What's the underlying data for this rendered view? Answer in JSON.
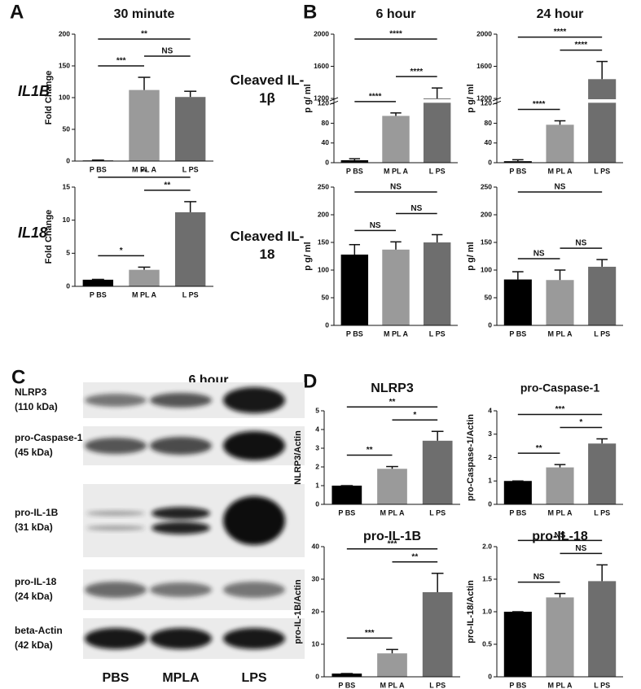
{
  "panel_labels": [
    "A",
    "B",
    "C",
    "D"
  ],
  "blot": {
    "title": "6 hour",
    "rows": [
      [
        "NLRP3",
        "(110 kDa)"
      ],
      [
        "pro-Caspase-1",
        "(45 kDa)"
      ],
      [
        "pro-IL-1B",
        "(31 kDa)"
      ],
      [
        "pro-IL-18",
        "(24 kDa)"
      ],
      [
        "beta-Actin",
        "(42 kDa)"
      ]
    ],
    "lanes": [
      "PBS",
      "MPLA",
      "LPS"
    ]
  },
  "chart_data": [
    {
      "type": "bar",
      "title": "30 minute",
      "row_label": "IL1B",
      "ylabel": "Fold Change",
      "categories": [
        "P BS",
        "M PL A",
        "L PS"
      ],
      "values": [
        1,
        112,
        101
      ],
      "errors": [
        0.5,
        20,
        9
      ],
      "colors": [
        "#000000",
        "#9a9a9a",
        "#6e6e6e"
      ],
      "ylim": [
        0,
        200
      ],
      "yticks": [
        0,
        50,
        100,
        150,
        200
      ],
      "annotations": [
        {
          "text": "**",
          "between": [
            0,
            2
          ]
        },
        {
          "text": "NS",
          "between": [
            1,
            2
          ]
        },
        {
          "text": "***",
          "between": [
            0,
            1
          ]
        }
      ]
    },
    {
      "type": "bar",
      "row_label": "IL18",
      "ylabel": "Fold Change",
      "categories": [
        "P BS",
        "M PL A",
        "L PS"
      ],
      "values": [
        1,
        2.5,
        11.2
      ],
      "errors": [
        0.05,
        0.4,
        1.6
      ],
      "colors": [
        "#000000",
        "#9a9a9a",
        "#6e6e6e"
      ],
      "ylim": [
        0,
        15
      ],
      "yticks": [
        0,
        5,
        10,
        15
      ],
      "annotations": [
        {
          "text": "**",
          "between": [
            0,
            2
          ]
        },
        {
          "text": "**",
          "between": [
            1,
            2
          ]
        },
        {
          "text": "*",
          "between": [
            0,
            1
          ]
        }
      ]
    },
    {
      "type": "bar",
      "title": "6 hour",
      "row_label": "Cleaved IL-1β",
      "ylabel": "p g/ ml",
      "categories": [
        "P BS",
        "M PL A",
        "L PS"
      ],
      "values": [
        5,
        95,
        1190
      ],
      "errors": [
        3,
        6,
        140
      ],
      "colors": [
        "#000000",
        "#9a9a9a",
        "#6e6e6e"
      ],
      "ylim": [
        0,
        2000
      ],
      "ybreak": [
        120,
        1200
      ],
      "yticks": [
        0,
        40,
        80,
        120,
        1200,
        1600,
        2000
      ],
      "annotations": [
        {
          "text": "****",
          "between": [
            0,
            2
          ]
        },
        {
          "text": "****",
          "between": [
            1,
            2
          ]
        },
        {
          "text": "****",
          "between": [
            0,
            1
          ]
        }
      ]
    },
    {
      "type": "bar",
      "title": "24 hour",
      "ylabel": "p g/ ml",
      "categories": [
        "P BS",
        "M PL A",
        "L PS"
      ],
      "values": [
        3,
        77,
        1440
      ],
      "errors": [
        3,
        8,
        220
      ],
      "colors": [
        "#000000",
        "#9a9a9a",
        "#6e6e6e"
      ],
      "ylim": [
        0,
        2000
      ],
      "ybreak": [
        120,
        1200
      ],
      "yticks": [
        0,
        40,
        80,
        120,
        1200,
        1600,
        2000
      ],
      "annotations": [
        {
          "text": "****",
          "between": [
            0,
            2
          ]
        },
        {
          "text": "****",
          "between": [
            1,
            2
          ]
        },
        {
          "text": "****",
          "between": [
            0,
            1
          ]
        }
      ]
    },
    {
      "type": "bar",
      "row_label": "Cleaved IL-18",
      "ylabel": "p g/ ml",
      "categories": [
        "P BS",
        "M PL A",
        "L PS"
      ],
      "values": [
        128,
        137,
        150
      ],
      "errors": [
        18,
        14,
        14
      ],
      "colors": [
        "#000000",
        "#9a9a9a",
        "#6e6e6e"
      ],
      "ylim": [
        0,
        250
      ],
      "yticks": [
        0,
        50,
        100,
        150,
        200,
        250
      ],
      "annotations": [
        {
          "text": "NS",
          "between": [
            0,
            2
          ]
        },
        {
          "text": "NS",
          "between": [
            1,
            2
          ]
        },
        {
          "text": "NS",
          "between": [
            0,
            1
          ]
        }
      ]
    },
    {
      "type": "bar",
      "ylabel": "p g/ ml",
      "categories": [
        "P BS",
        "M PL A",
        "L PS"
      ],
      "values": [
        83,
        82,
        106
      ],
      "errors": [
        14,
        18,
        13
      ],
      "colors": [
        "#000000",
        "#9a9a9a",
        "#6e6e6e"
      ],
      "ylim": [
        0,
        250
      ],
      "yticks": [
        0,
        50,
        100,
        150,
        200,
        250
      ],
      "annotations": [
        {
          "text": "NS",
          "between": [
            0,
            2
          ]
        },
        {
          "text": "NS",
          "between": [
            1,
            2
          ]
        },
        {
          "text": "NS",
          "between": [
            0,
            1
          ]
        }
      ]
    },
    {
      "type": "bar",
      "title": "NLRP3",
      "ylabel": "NLRP3/Actin",
      "categories": [
        "P BS",
        "M PL A",
        "L PS"
      ],
      "values": [
        1,
        1.9,
        3.4
      ],
      "errors": [
        0,
        0.12,
        0.5
      ],
      "colors": [
        "#000000",
        "#9a9a9a",
        "#6e6e6e"
      ],
      "ylim": [
        0,
        5
      ],
      "yticks": [
        0,
        1,
        2,
        3,
        4,
        5
      ],
      "annotations": [
        {
          "text": "**",
          "between": [
            0,
            2
          ]
        },
        {
          "text": "*",
          "between": [
            1,
            2
          ]
        },
        {
          "text": "**",
          "between": [
            0,
            1
          ]
        }
      ]
    },
    {
      "type": "bar",
      "title": "pro-Caspase-1",
      "ylabel": "pro-Caspase-1/Actin",
      "categories": [
        "P BS",
        "M PL A",
        "L PS"
      ],
      "values": [
        1,
        1.58,
        2.6
      ],
      "errors": [
        0,
        0.12,
        0.2
      ],
      "colors": [
        "#000000",
        "#9a9a9a",
        "#6e6e6e"
      ],
      "ylim": [
        0,
        4
      ],
      "yticks": [
        0,
        1,
        2,
        3,
        4
      ],
      "annotations": [
        {
          "text": "***",
          "between": [
            0,
            2
          ]
        },
        {
          "text": "*",
          "between": [
            1,
            2
          ]
        },
        {
          "text": "**",
          "between": [
            0,
            1
          ]
        }
      ]
    },
    {
      "type": "bar",
      "title": "pro-IL-1B",
      "ylabel": "pro-IL-1B/Actin",
      "categories": [
        "P BS",
        "M PL A",
        "L PS"
      ],
      "values": [
        1,
        7.2,
        26
      ],
      "errors": [
        0,
        1.2,
        5.8
      ],
      "colors": [
        "#000000",
        "#9a9a9a",
        "#6e6e6e"
      ],
      "ylim": [
        0,
        40
      ],
      "yticks": [
        0,
        10,
        20,
        30,
        40
      ],
      "annotations": [
        {
          "text": "***",
          "between": [
            0,
            2
          ]
        },
        {
          "text": "**",
          "between": [
            1,
            2
          ]
        },
        {
          "text": "***",
          "between": [
            0,
            1
          ]
        }
      ]
    },
    {
      "type": "bar",
      "title": "pro-IL-18",
      "ylabel": "pro-IL-18/Actin",
      "categories": [
        "P BS",
        "M PL A",
        "L PS"
      ],
      "values": [
        1,
        1.22,
        1.47
      ],
      "errors": [
        0,
        0.06,
        0.25
      ],
      "colors": [
        "#000000",
        "#9a9a9a",
        "#6e6e6e"
      ],
      "ylim": [
        0,
        2
      ],
      "yticks": [
        0,
        0.5,
        {
          "value": 1,
          "label": "1.0"
        },
        1.5,
        {
          "value": 2,
          "label": "2.0"
        }
      ],
      "annotations": [
        {
          "text": "NS",
          "between": [
            0,
            2
          ]
        },
        {
          "text": "NS",
          "between": [
            1,
            2
          ]
        },
        {
          "text": "NS",
          "between": [
            0,
            1
          ]
        }
      ]
    }
  ]
}
